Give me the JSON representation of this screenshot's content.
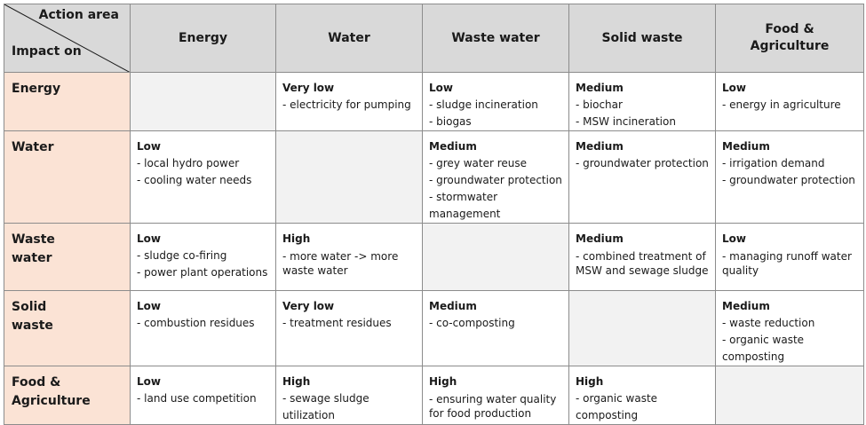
{
  "corner": {
    "top_label": "Action area",
    "bottom_label": "Impact on"
  },
  "columns": [
    "Energy",
    "Water",
    "Waste water",
    "Solid waste",
    "Food & Agriculture"
  ],
  "rows": [
    {
      "label": "Energy",
      "cells": [
        null,
        {
          "level": "Very low",
          "items": [
            "- electricity for pumping"
          ]
        },
        {
          "level": "Low",
          "items": [
            "- sludge incineration",
            "- biogas"
          ]
        },
        {
          "level": "Medium",
          "items": [
            "- biochar",
            "- MSW incineration"
          ]
        },
        {
          "level": "Low",
          "items": [
            "- energy in agriculture"
          ]
        }
      ]
    },
    {
      "label": "Water",
      "cells": [
        {
          "level": "Low",
          "items": [
            "- local hydro power",
            "- cooling water needs"
          ]
        },
        null,
        {
          "level": "Medium",
          "items": [
            "- grey water reuse",
            "- groundwater protection",
            "- stormwater management"
          ]
        },
        {
          "level": "Medium",
          "items": [
            "- groundwater protection"
          ]
        },
        {
          "level": "Medium",
          "items": [
            "- irrigation demand",
            "- groundwater protection"
          ]
        }
      ]
    },
    {
      "label": "Waste water",
      "cells": [
        {
          "level": "Low",
          "items": [
            "- sludge co-firing",
            "- power plant operations"
          ]
        },
        {
          "level": "High",
          "items": [
            "- more water -> more waste water"
          ]
        },
        null,
        {
          "level": "Medium",
          "items": [
            "- combined treatment of MSW and sewage sludge"
          ]
        },
        {
          "level": "Low",
          "items": [
            "- managing runoff water quality"
          ]
        }
      ]
    },
    {
      "label": "Solid waste",
      "cells": [
        {
          "level": "Low",
          "items": [
            "- combustion residues"
          ]
        },
        {
          "level": "Very low",
          "items": [
            "- treatment residues"
          ]
        },
        {
          "level": "Medium",
          "items": [
            "- co-composting"
          ]
        },
        null,
        {
          "level": "Medium",
          "items": [
            "- waste reduction",
            "- organic waste composting"
          ]
        }
      ]
    },
    {
      "label": "Food & Agriculture",
      "cells": [
        {
          "level": "Low",
          "items": [
            "- land use competition"
          ]
        },
        {
          "level": "High",
          "items": [
            "- sewage sludge utilization"
          ]
        },
        {
          "level": "High",
          "items": [
            "- ensuring water quality for food production"
          ]
        },
        {
          "level": "High",
          "items": [
            "- organic waste composting"
          ]
        },
        null
      ]
    }
  ]
}
